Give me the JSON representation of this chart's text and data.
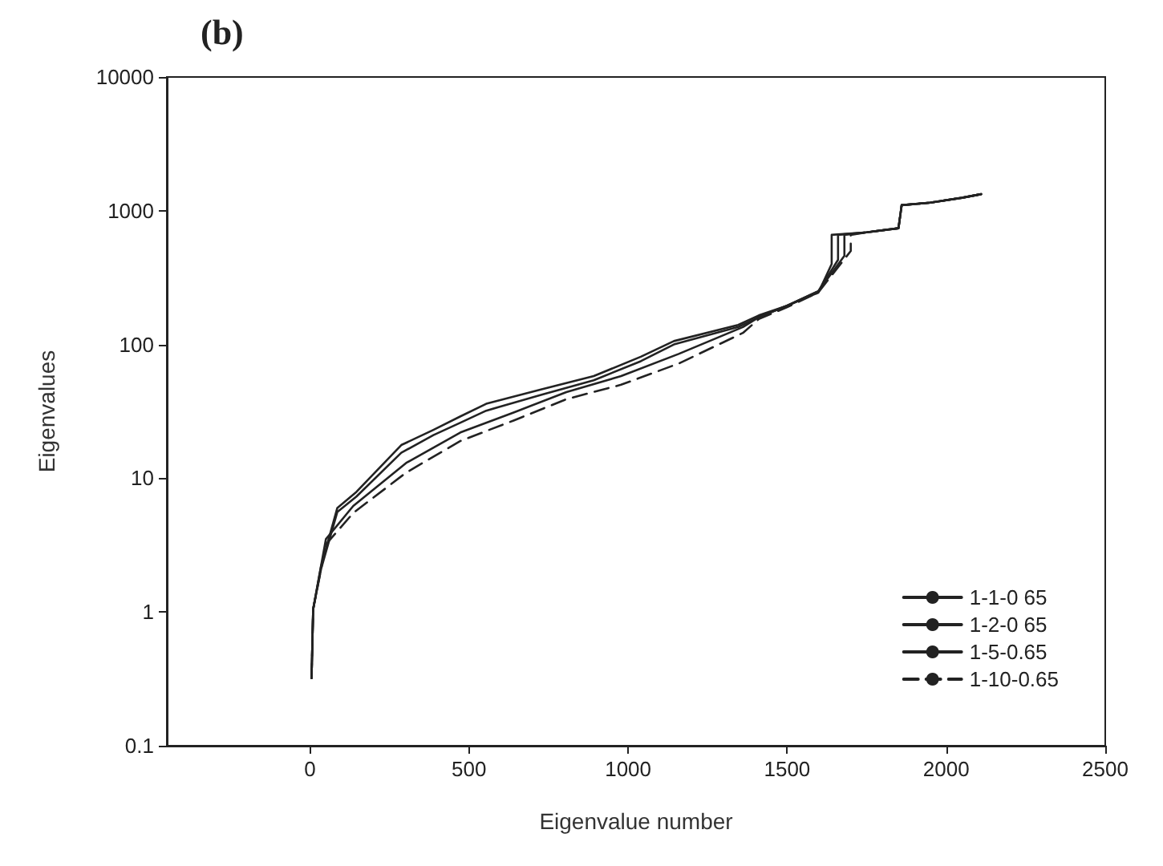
{
  "chart_data": {
    "type": "line",
    "title": "(b)",
    "xlabel": "Eigenvalue number",
    "ylabel": "Eigenvalues",
    "log": "y",
    "xlim": [
      -450,
      2500
    ],
    "xticks": [
      0,
      500,
      1000,
      1500,
      2000,
      2500
    ],
    "ylim": [
      0.1,
      10000
    ],
    "yticks": [
      0.1,
      1,
      10,
      100,
      1000,
      10000
    ],
    "grid": false,
    "legend": "bottom right",
    "marker": "none",
    "series": [
      {
        "name": "1-1-0 65",
        "color": "#222222",
        "line_style": "solid",
        "x": [
          5,
          10,
          35,
          86,
          146,
          287,
          388,
          473,
          554,
          726,
          892,
          1040,
          1144,
          1346,
          1411,
          1500,
          1598,
          1640,
          1640,
          1750,
          1850,
          1860,
          1950,
          2050,
          2110
        ],
        "values": [
          0.32,
          1.05,
          2.2,
          6,
          7.9,
          17.7,
          23,
          29,
          36,
          46,
          58,
          81,
          106,
          140,
          165,
          195,
          244,
          400,
          660,
          690,
          740,
          1100,
          1150,
          1250,
          1330
        ]
      },
      {
        "name": "1-2-0 65",
        "color": "#222222",
        "line_style": "solid",
        "x": [
          5,
          10,
          35,
          86,
          146,
          287,
          388,
          473,
          554,
          726,
          892,
          1040,
          1144,
          1346,
          1411,
          1500,
          1598,
          1660,
          1660,
          1750,
          1850,
          1860,
          1950,
          2050,
          2110
        ],
        "values": [
          0.32,
          1.05,
          2.1,
          5.6,
          7.3,
          15.5,
          21,
          26,
          32,
          42,
          54,
          75,
          100,
          135,
          160,
          195,
          250,
          430,
          660,
          690,
          740,
          1100,
          1150,
          1250,
          1330
        ]
      },
      {
        "name": "1-5-0.65",
        "color": "#222222",
        "line_style": "solid",
        "x": [
          5,
          10,
          50,
          136,
          302,
          473,
          640,
          806,
          978,
          1159,
          1361,
          1411,
          1500,
          1598,
          1680,
          1680,
          1750,
          1850,
          1860,
          1950,
          2050,
          2110
        ],
        "values": [
          0.32,
          1.05,
          3.5,
          6.2,
          13,
          22,
          31,
          44,
          58,
          85,
          135,
          160,
          195,
          250,
          460,
          660,
          690,
          740,
          1100,
          1150,
          1250,
          1330
        ]
      },
      {
        "name": "1-10-0.65",
        "color": "#222222",
        "line_style": "dashed",
        "x": [
          5,
          10,
          50,
          136,
          302,
          473,
          640,
          806,
          978,
          1159,
          1361,
          1411,
          1500,
          1598,
          1700,
          1700,
          1750,
          1850,
          1860,
          1950,
          2050,
          2110
        ],
        "values": [
          0.32,
          1.05,
          3.2,
          5.5,
          11,
          19,
          27,
          39,
          50,
          72,
          122,
          155,
          190,
          245,
          500,
          660,
          690,
          740,
          1100,
          1150,
          1250,
          1330
        ]
      }
    ]
  }
}
